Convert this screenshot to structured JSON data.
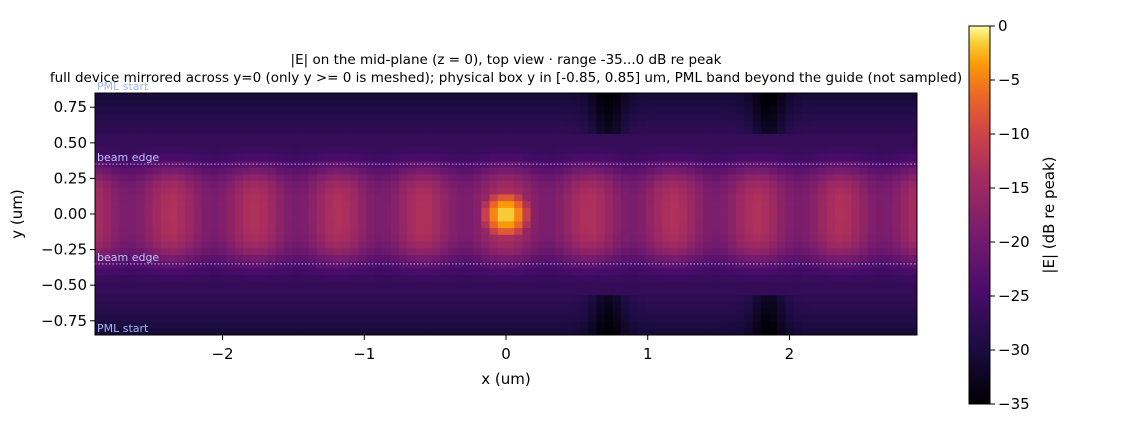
{
  "chart_data": {
    "type": "heatmap",
    "title": "|E| on the mid-plane (z = 0), top view · range -35...0 dB re peak",
    "subtitle": "full device mirrored across y=0 (only y >= 0 is meshed); physical box y in [-0.85, 0.85] um, PML band beyond the guide (not sampled)",
    "xlabel": "x (um)",
    "ylabel": "y (um)",
    "xlim": [
      -2.9,
      2.9
    ],
    "ylim": [
      -0.85,
      0.85
    ],
    "x_ticks": [
      -2,
      -1,
      0,
      1,
      2
    ],
    "x_tick_labels": [
      "−2",
      "−1",
      "0",
      "1",
      "2"
    ],
    "y_ticks": [
      0.75,
      0.5,
      0.25,
      0.0,
      -0.25,
      -0.5,
      -0.75
    ],
    "y_tick_labels": [
      "0.75",
      "0.50",
      "0.25",
      "0.00",
      "−0.25",
      "−0.50",
      "−0.75"
    ],
    "colormap": "inferno",
    "colorbar": {
      "label": "|E| (dB re peak)",
      "range": [
        -35,
        0
      ],
      "ticks": [
        0,
        -5,
        -10,
        -15,
        -20,
        -25,
        -30,
        -35
      ],
      "tick_labels": [
        "0",
        "−5",
        "−10",
        "−15",
        "−20",
        "−25",
        "−30",
        "−35"
      ]
    },
    "peak": {
      "x": 0.0,
      "y": 0.0,
      "value_db": 0
    },
    "field_model": {
      "core_level_db": -16,
      "cladding_level_db": -27,
      "beam_half_width_um": 0.35,
      "period_um": 0.59,
      "ripple_db": 3
    },
    "annotations": [
      {
        "text": "PML start",
        "y": 0.85,
        "color": "#9db8f2"
      },
      {
        "text": "beam edge",
        "y": 0.35,
        "color": "#b9c8ff"
      },
      {
        "text": "beam edge",
        "y": -0.35,
        "color": "#b9c8ff"
      },
      {
        "text": "PML start",
        "y": -0.85,
        "color": "#9db8f2"
      }
    ],
    "grid": false,
    "legend": "none"
  }
}
